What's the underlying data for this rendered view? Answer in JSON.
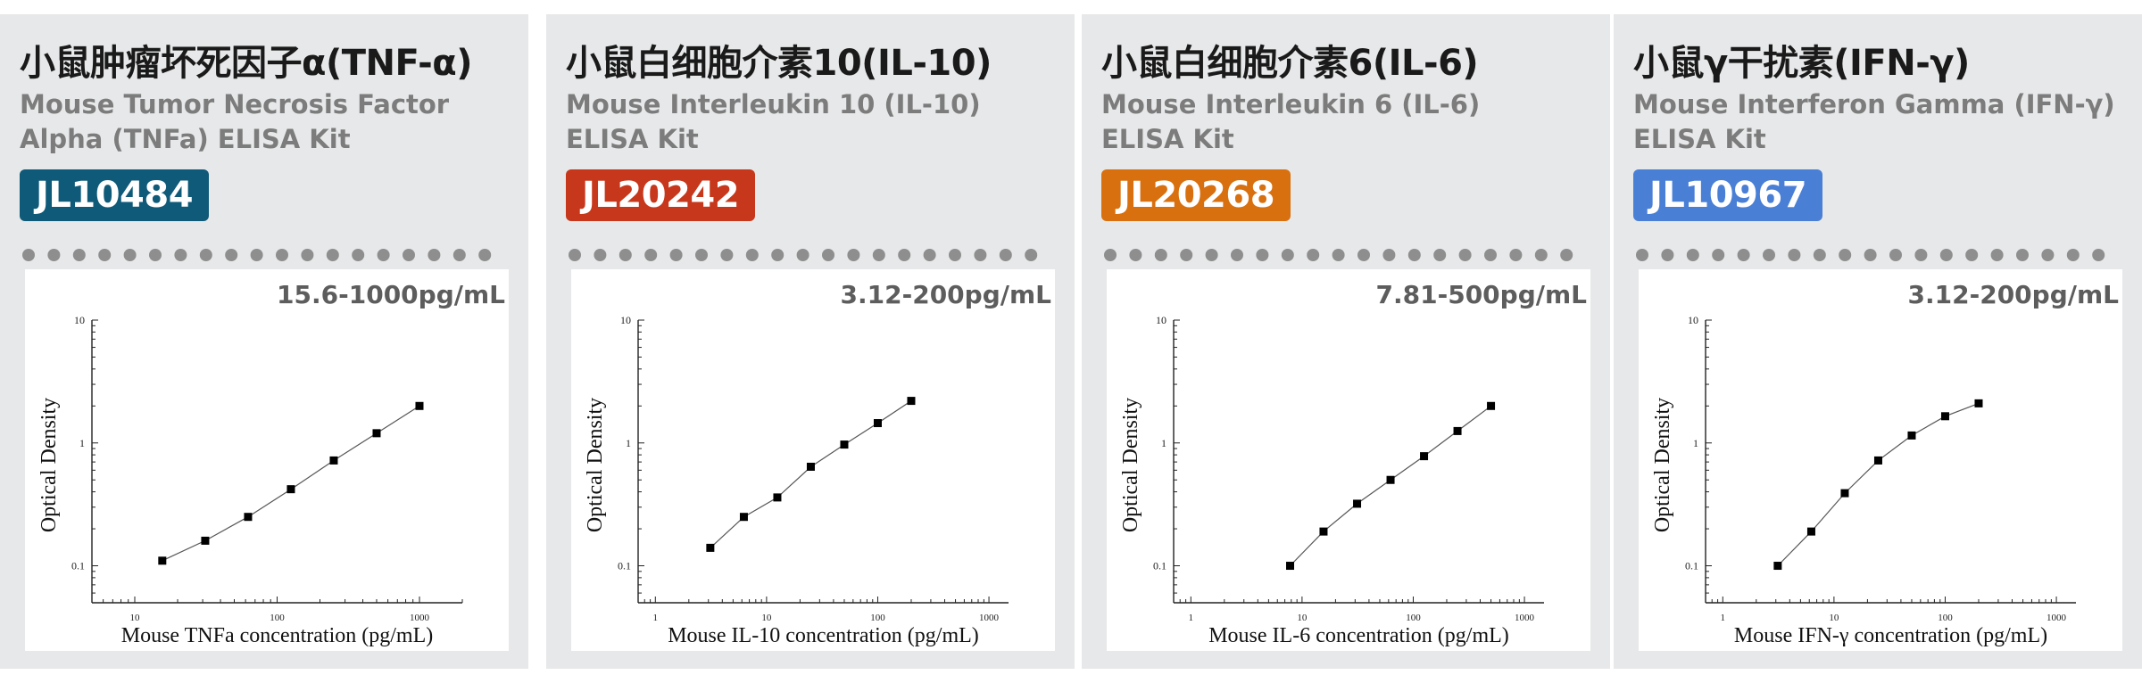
{
  "cards": [
    {
      "title": "小鼠肿瘤坏死因子α(TNF-α)",
      "subtitle_line1": "Mouse Tumor Necrosis Factor",
      "subtitle_line2": "Alpha (TNFa) ELISA Kit",
      "badge": "JL10484",
      "badge_color": "#0f5a78",
      "range": "15.6-1000pg/mL"
    },
    {
      "title": "小鼠白细胞介素10(IL-10)",
      "subtitle_line1": "Mouse Interleukin 10 (IL-10)",
      "subtitle_line2": "ELISA Kit",
      "badge": "JL20242",
      "badge_color": "#c7371b",
      "range": "3.12-200pg/mL"
    },
    {
      "title": "小鼠白细胞介素6(IL-6)",
      "subtitle_line1": "Mouse Interleukin 6 (IL-6)",
      "subtitle_line2": "ELISA Kit",
      "badge": "JL20268",
      "badge_color": "#d8700f",
      "range": "7.81-500pg/mL"
    },
    {
      "title": "小鼠γ干扰素(IFN-γ)",
      "subtitle_line1": "Mouse Interferon Gamma (IFN-γ)",
      "subtitle_line2": "ELISA Kit",
      "badge": "JL10967",
      "badge_color": "#4a7fd6",
      "range": "3.12-200pg/mL"
    }
  ],
  "chart_data": [
    {
      "type": "line",
      "xlabel": "Mouse TNFa concentration (pg/mL)",
      "ylabel": "Optical Density",
      "xscale": "log",
      "yscale": "log",
      "xlim": [
        5,
        2000
      ],
      "ylim": [
        0.05,
        10
      ],
      "xticks": [
        "10",
        "100",
        "1000"
      ],
      "yticks": [
        "0.1",
        "1",
        "10"
      ],
      "grid": false,
      "x": [
        15.6,
        31.25,
        62.5,
        125,
        250,
        500,
        1000
      ],
      "y": [
        0.11,
        0.16,
        0.25,
        0.42,
        0.72,
        1.2,
        2.0
      ]
    },
    {
      "type": "line",
      "xlabel": "Mouse IL-10 concentration (pg/mL)",
      "ylabel": "Optical Density",
      "xscale": "log",
      "yscale": "log",
      "xlim": [
        0.7,
        1500
      ],
      "ylim": [
        0.05,
        10
      ],
      "xticks": [
        "1",
        "10",
        "100",
        "1000"
      ],
      "yticks": [
        "0.1",
        "1",
        "10"
      ],
      "grid": false,
      "x": [
        3.12,
        6.25,
        12.5,
        25,
        50,
        100,
        200
      ],
      "y": [
        0.14,
        0.25,
        0.36,
        0.64,
        0.97,
        1.45,
        2.2
      ]
    },
    {
      "type": "line",
      "xlabel": "Mouse IL-6 concentration (pg/mL)",
      "ylabel": "Optical Density",
      "xscale": "log",
      "yscale": "log",
      "xlim": [
        0.7,
        1500
      ],
      "ylim": [
        0.05,
        10
      ],
      "xticks": [
        "1",
        "10",
        "100",
        "1000"
      ],
      "yticks": [
        "0.1",
        "1",
        "10"
      ],
      "grid": false,
      "x": [
        7.81,
        15.6,
        31.25,
        62.5,
        125,
        250,
        500
      ],
      "y": [
        0.1,
        0.19,
        0.32,
        0.5,
        0.78,
        1.25,
        2.0
      ]
    },
    {
      "type": "line",
      "xlabel": "Mouse IFN-γ concentration (pg/mL)",
      "ylabel": "Optical Density",
      "xscale": "log",
      "yscale": "log",
      "xlim": [
        0.7,
        1500
      ],
      "ylim": [
        0.05,
        10
      ],
      "xticks": [
        "1",
        "10",
        "100",
        "1000"
      ],
      "yticks": [
        "0.1",
        "1",
        "10"
      ],
      "grid": false,
      "x": [
        3.12,
        6.25,
        12.5,
        25,
        50,
        100,
        200
      ],
      "y": [
        0.1,
        0.19,
        0.39,
        0.72,
        1.15,
        1.65,
        2.1
      ]
    }
  ]
}
